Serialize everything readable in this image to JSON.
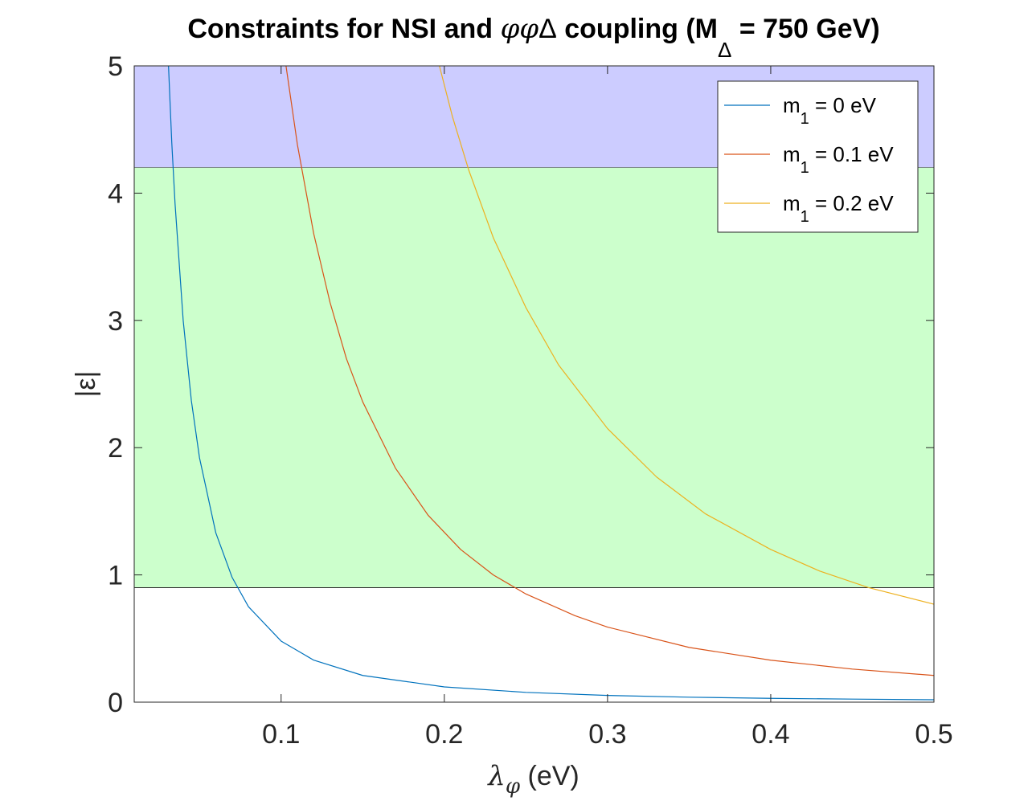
{
  "chart_data": {
    "type": "line",
    "title": {
      "prefix": "Constraints for NSI and ",
      "phi1": "φ",
      "phi2": "φ",
      "delta": "Δ",
      "middle": " coupling (M",
      "subscript": "Δ",
      "suffix": " = 750 GeV)"
    },
    "xlabel": {
      "main": "λ",
      "sub": "φ",
      "unit": " (eV)"
    },
    "ylabel": "|ε|",
    "xlim": [
      0.01,
      0.5
    ],
    "ylim": [
      0,
      5
    ],
    "xticks": [
      0.1,
      0.2,
      0.3,
      0.4,
      0.5
    ],
    "xtick_labels": [
      "0.1",
      "0.2",
      "0.3",
      "0.4",
      "0.5"
    ],
    "yticks": [
      0,
      1,
      2,
      3,
      4,
      5
    ],
    "ytick_labels": [
      "0",
      "1",
      "2",
      "3",
      "4",
      "5"
    ],
    "grid": false,
    "legend_position": "top-right",
    "bands": [
      {
        "y_from": 4.2,
        "y_to": 5.0,
        "color": "#ccccff"
      },
      {
        "y_from": 0.9,
        "y_to": 4.2,
        "color": "#ccffcc"
      }
    ],
    "series": [
      {
        "name": "m₁ = 0 eV",
        "legend": {
          "main": "m",
          "sub": "1",
          "rest": " = 0 eV"
        },
        "color": "#0072bd",
        "x": [
          0.031,
          0.033,
          0.035,
          0.04,
          0.045,
          0.05,
          0.06,
          0.07,
          0.08,
          0.1,
          0.12,
          0.15,
          0.2,
          0.25,
          0.3,
          0.35,
          0.4,
          0.45,
          0.5
        ],
        "y": [
          5.0,
          4.4,
          3.92,
          3.0,
          2.37,
          1.92,
          1.33,
          0.98,
          0.75,
          0.48,
          0.33,
          0.21,
          0.12,
          0.077,
          0.053,
          0.039,
          0.03,
          0.024,
          0.019
        ]
      },
      {
        "name": "m₁ = 0.1 eV",
        "legend": {
          "main": "m",
          "sub": "1",
          "rest": " = 0.1 eV"
        },
        "color": "#d95319",
        "x": [
          0.103,
          0.11,
          0.12,
          0.13,
          0.14,
          0.15,
          0.17,
          0.19,
          0.21,
          0.23,
          0.25,
          0.28,
          0.3,
          0.35,
          0.4,
          0.45,
          0.5
        ],
        "y": [
          5.0,
          4.38,
          3.68,
          3.14,
          2.7,
          2.36,
          1.84,
          1.47,
          1.2,
          1.0,
          0.85,
          0.68,
          0.59,
          0.43,
          0.33,
          0.26,
          0.21
        ]
      },
      {
        "name": "m₁ = 0.2 eV",
        "legend": {
          "main": "m",
          "sub": "1",
          "rest": " = 0.2 eV"
        },
        "color": "#edb120",
        "x": [
          0.197,
          0.205,
          0.215,
          0.23,
          0.25,
          0.27,
          0.3,
          0.33,
          0.36,
          0.4,
          0.43,
          0.46,
          0.5
        ],
        "y": [
          5.0,
          4.6,
          4.18,
          3.65,
          3.1,
          2.65,
          2.15,
          1.77,
          1.48,
          1.2,
          1.03,
          0.9,
          0.77
        ]
      }
    ]
  }
}
